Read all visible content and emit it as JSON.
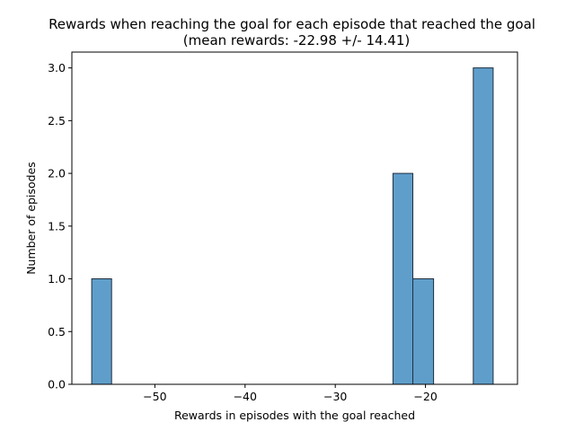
{
  "chart_data": {
    "type": "bar",
    "title_line1": "Rewards when reaching the goal for each episode that reached the goal",
    "title_line2": "(mean rewards: -22.98 +/- 14.41)",
    "xlabel": "Rewards in episodes with the goal reached",
    "ylabel": "Number of episodes",
    "xlim": [
      -59.2,
      -9.8
    ],
    "ylim": [
      0,
      3.15
    ],
    "xticks": [
      -50,
      -40,
      -30,
      -20
    ],
    "xtick_labels": [
      "−50",
      "−40",
      "−30",
      "−20"
    ],
    "yticks": [
      0,
      0.5,
      1.0,
      1.5,
      2.0,
      2.5,
      3.0
    ],
    "ytick_labels": [
      "0.0",
      "0.5",
      "1.0",
      "1.5",
      "2.0",
      "2.5",
      "3.0"
    ],
    "bins": [
      {
        "x0": -57.0,
        "x1": -54.8,
        "count": 1
      },
      {
        "x0": -23.6,
        "x1": -21.4,
        "count": 2
      },
      {
        "x0": -21.4,
        "x1": -19.1,
        "count": 1
      },
      {
        "x0": -14.7,
        "x1": -12.5,
        "count": 3
      }
    ],
    "bar_color": "#5f9ecb",
    "edge_color": "#1f2f3f",
    "grid": false,
    "legend": "none"
  }
}
